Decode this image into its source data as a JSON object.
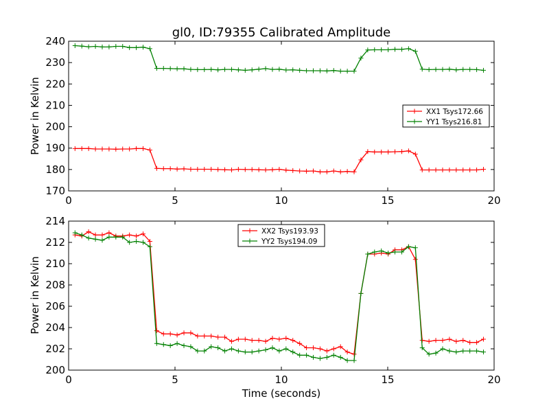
{
  "chart_data": [
    {
      "type": "line",
      "title": "gl0, ID:79355 Calibrated Amplitude",
      "xlabel": "",
      "ylabel": "Power in Kelvin",
      "xlim": [
        0,
        20
      ],
      "ylim": [
        170,
        240
      ],
      "xticks": [
        0,
        5,
        10,
        15,
        20
      ],
      "yticks": [
        170,
        180,
        190,
        200,
        210,
        220,
        230,
        240
      ],
      "grid": false,
      "legend_position": "center-right",
      "x": [
        0.3,
        0.62,
        0.94,
        1.26,
        1.58,
        1.9,
        2.22,
        2.54,
        2.86,
        3.18,
        3.5,
        3.82,
        4.14,
        4.46,
        4.78,
        5.1,
        5.42,
        5.74,
        6.06,
        6.38,
        6.7,
        7.02,
        7.34,
        7.66,
        7.98,
        8.3,
        8.62,
        8.94,
        9.26,
        9.58,
        9.9,
        10.22,
        10.54,
        10.86,
        11.18,
        11.5,
        11.82,
        12.14,
        12.46,
        12.78,
        13.1,
        13.42,
        13.74,
        14.06,
        14.38,
        14.7,
        15.02,
        15.34,
        15.66,
        15.98,
        16.3,
        16.62,
        16.94,
        17.26,
        17.58,
        17.9,
        18.22,
        18.54,
        18.86,
        19.18,
        19.5
      ],
      "series": [
        {
          "name": "XX1 Tsys172.66",
          "color": "#ff0000",
          "values": [
            189.8,
            189.8,
            189.8,
            189.6,
            189.6,
            189.6,
            189.5,
            189.6,
            189.6,
            189.8,
            189.8,
            189.1,
            180.5,
            180.4,
            180.4,
            180.2,
            180.3,
            180.1,
            180.1,
            180.1,
            180.1,
            180.0,
            179.9,
            179.8,
            180.1,
            180.0,
            180.0,
            179.9,
            179.8,
            179.9,
            180.1,
            179.7,
            179.5,
            179.3,
            179.2,
            179.3,
            178.9,
            178.9,
            179.3,
            178.9,
            179.1,
            178.9,
            184.5,
            188.4,
            188.2,
            188.2,
            188.2,
            188.3,
            188.4,
            188.7,
            187.2,
            179.8,
            179.8,
            179.8,
            179.8,
            179.8,
            179.8,
            179.8,
            179.8,
            179.8,
            180.1
          ]
        },
        {
          "name": "YY1 Tsys216.81",
          "color": "#008000",
          "values": [
            237.9,
            237.7,
            237.4,
            237.6,
            237.3,
            237.3,
            237.6,
            237.6,
            237.0,
            237.0,
            237.2,
            236.5,
            227.3,
            227.3,
            227.2,
            227.1,
            227.1,
            226.8,
            226.7,
            226.7,
            226.8,
            226.6,
            226.8,
            226.8,
            226.6,
            226.4,
            226.6,
            226.9,
            227.2,
            226.8,
            226.9,
            226.5,
            226.6,
            226.4,
            226.2,
            226.2,
            226.2,
            226.1,
            226.3,
            226.0,
            226.0,
            226.0,
            232.1,
            235.9,
            236.0,
            236.0,
            236.0,
            236.2,
            236.2,
            236.5,
            235.3,
            226.9,
            226.7,
            226.8,
            226.8,
            226.9,
            226.6,
            226.8,
            226.8,
            226.7,
            226.4
          ]
        }
      ]
    },
    {
      "type": "line",
      "title": "",
      "xlabel": "Time (seconds)",
      "ylabel": "Power in Kelvin",
      "xlim": [
        0,
        20
      ],
      "ylim": [
        200,
        214
      ],
      "xticks": [
        0,
        5,
        10,
        15,
        20
      ],
      "yticks": [
        200,
        202,
        204,
        206,
        208,
        210,
        212,
        214
      ],
      "grid": false,
      "legend_position": "top-center",
      "x": [
        0.3,
        0.62,
        0.94,
        1.26,
        1.58,
        1.9,
        2.22,
        2.54,
        2.86,
        3.18,
        3.5,
        3.82,
        4.14,
        4.46,
        4.78,
        5.1,
        5.42,
        5.74,
        6.06,
        6.38,
        6.7,
        7.02,
        7.34,
        7.66,
        7.98,
        8.3,
        8.62,
        8.94,
        9.26,
        9.58,
        9.9,
        10.22,
        10.54,
        10.86,
        11.18,
        11.5,
        11.82,
        12.14,
        12.46,
        12.78,
        13.1,
        13.42,
        13.74,
        14.06,
        14.38,
        14.7,
        15.02,
        15.34,
        15.66,
        15.98,
        16.3,
        16.62,
        16.94,
        17.26,
        17.58,
        17.9,
        18.22,
        18.54,
        18.86,
        19.18,
        19.5
      ],
      "series": [
        {
          "name": "XX2 Tsys193.93",
          "color": "#ff0000",
          "values": [
            212.7,
            212.6,
            213.0,
            212.7,
            212.7,
            212.9,
            212.6,
            212.6,
            212.7,
            212.6,
            212.8,
            212.1,
            203.7,
            203.4,
            203.4,
            203.3,
            203.5,
            203.5,
            203.2,
            203.2,
            203.2,
            203.1,
            203.1,
            202.7,
            202.9,
            202.9,
            202.8,
            202.8,
            202.7,
            203.0,
            202.9,
            203.0,
            202.8,
            202.5,
            202.1,
            202.1,
            202.0,
            201.8,
            202.0,
            202.2,
            201.7,
            201.5,
            207.2,
            210.9,
            210.9,
            211.0,
            210.9,
            211.3,
            211.3,
            211.6,
            210.4,
            202.8,
            202.7,
            202.8,
            202.8,
            202.9,
            202.7,
            202.8,
            202.6,
            202.6,
            202.9
          ]
        },
        {
          "name": "YY2 Tsys194.09",
          "color": "#008000",
          "values": [
            212.9,
            212.7,
            212.4,
            212.3,
            212.2,
            212.5,
            212.5,
            212.5,
            212.0,
            212.1,
            212.0,
            211.6,
            202.5,
            202.4,
            202.3,
            202.5,
            202.3,
            202.2,
            201.8,
            201.8,
            202.2,
            202.1,
            201.8,
            202.0,
            201.8,
            201.7,
            201.7,
            201.8,
            201.9,
            202.1,
            201.8,
            202.0,
            201.7,
            201.4,
            201.4,
            201.2,
            201.1,
            201.2,
            201.4,
            201.2,
            200.9,
            200.9,
            207.2,
            210.9,
            211.1,
            211.2,
            211.0,
            211.1,
            211.1,
            211.6,
            211.5,
            202.1,
            201.5,
            201.6,
            202.0,
            201.8,
            201.7,
            201.8,
            201.8,
            201.8,
            201.7
          ]
        }
      ]
    }
  ]
}
